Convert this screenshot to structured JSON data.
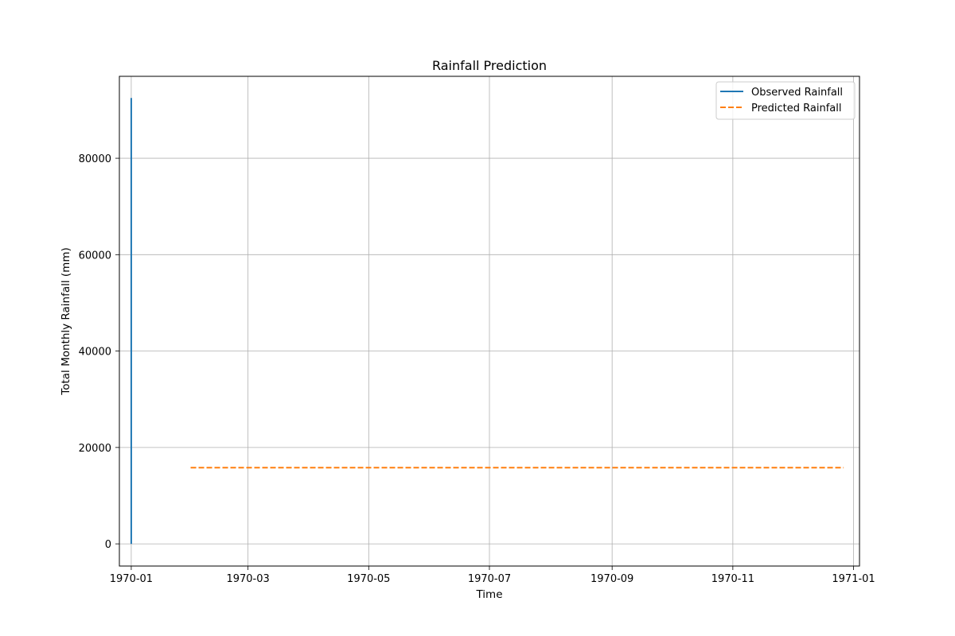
{
  "chart_data": {
    "type": "line",
    "title": "Rainfall Prediction",
    "xlabel": "Time",
    "ylabel": "Total Monthly Rainfall (mm)",
    "xlim": [
      "1969-12-26",
      "1971-01-04"
    ],
    "ylim": [
      -4600,
      97000
    ],
    "x_tick_labels": [
      "1970-01",
      "1970-03",
      "1970-05",
      "1970-07",
      "1970-09",
      "1970-11",
      "1971-01"
    ],
    "x_ticks": [
      "1970-01-01",
      "1970-03-01",
      "1970-05-01",
      "1970-07-01",
      "1970-09-01",
      "1970-11-01",
      "1971-01-01"
    ],
    "y_ticks": [
      0,
      20000,
      40000,
      60000,
      80000
    ],
    "y_tick_labels": [
      "0",
      "20000",
      "40000",
      "60000",
      "80000"
    ],
    "grid": true,
    "legend_position": "top-right",
    "series": [
      {
        "name": "Observed Rainfall",
        "color": "#1f77b4",
        "style": "solid",
        "points": [
          {
            "x": "1970-01-01",
            "y": 0
          },
          {
            "x": "1970-01-01",
            "y": 92500
          }
        ]
      },
      {
        "name": "Predicted Rainfall",
        "color": "#ff7f0e",
        "style": "dashed",
        "points": [
          {
            "x": "1970-01-31",
            "y": 15800
          },
          {
            "x": "1970-12-27",
            "y": 15800
          }
        ]
      }
    ]
  }
}
